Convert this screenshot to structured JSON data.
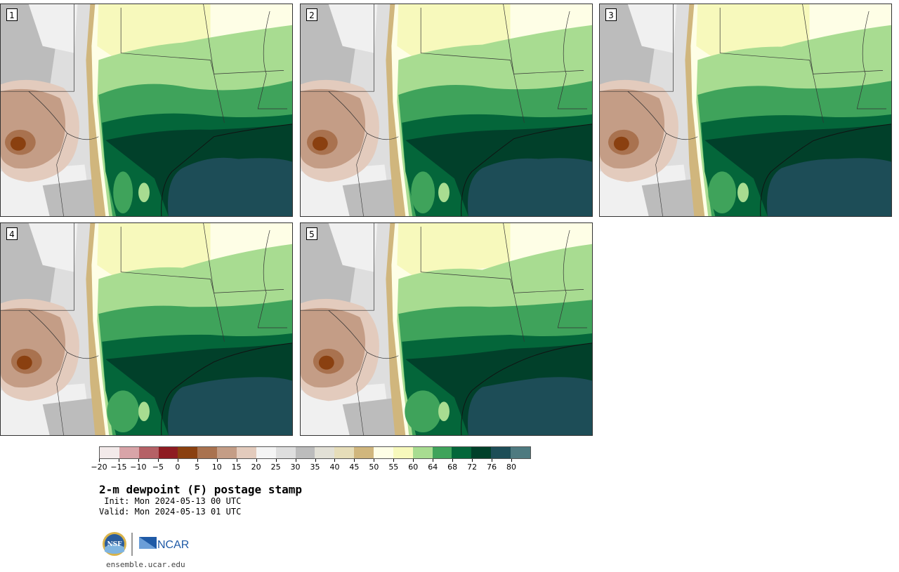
{
  "stamps": [
    {
      "label": "1",
      "variant": 0
    },
    {
      "label": "2",
      "variant": 1
    },
    {
      "label": "3",
      "variant": 2
    },
    {
      "label": "4",
      "variant": 3
    },
    {
      "label": "5",
      "variant": 4
    }
  ],
  "colorbar": {
    "colors": [
      "#f3eaea",
      "#d8a4a8",
      "#b56166",
      "#8e1c22",
      "#8a4010",
      "#a9724f",
      "#c49d86",
      "#e3cbbd",
      "#f4f4f4",
      "#dedede",
      "#bcbcbc",
      "#e2e0d6",
      "#e6ddb9",
      "#d0b67d",
      "#fefee6",
      "#f7f9bc",
      "#a8dc91",
      "#3fa35b",
      "#04663a",
      "#01402a",
      "#1d4d57",
      "#4e7a80"
    ],
    "tick_labels": [
      "−20",
      "−15",
      "−10",
      "−5",
      "0",
      "5",
      "10",
      "15",
      "20",
      "25",
      "30",
      "35",
      "40",
      "45",
      "50",
      "55",
      "60",
      "64",
      "68",
      "72",
      "76",
      "80"
    ]
  },
  "title": "2-m dewpoint (F) postage stamp",
  "init_line": " Init: Mon 2024-05-13 00 UTC",
  "valid_line": "Valid: Mon 2024-05-13 01 UTC",
  "logos": {
    "nsf": "NSF",
    "ncar": "NCAR"
  },
  "footer_url": "ensemble.ucar.edu"
}
